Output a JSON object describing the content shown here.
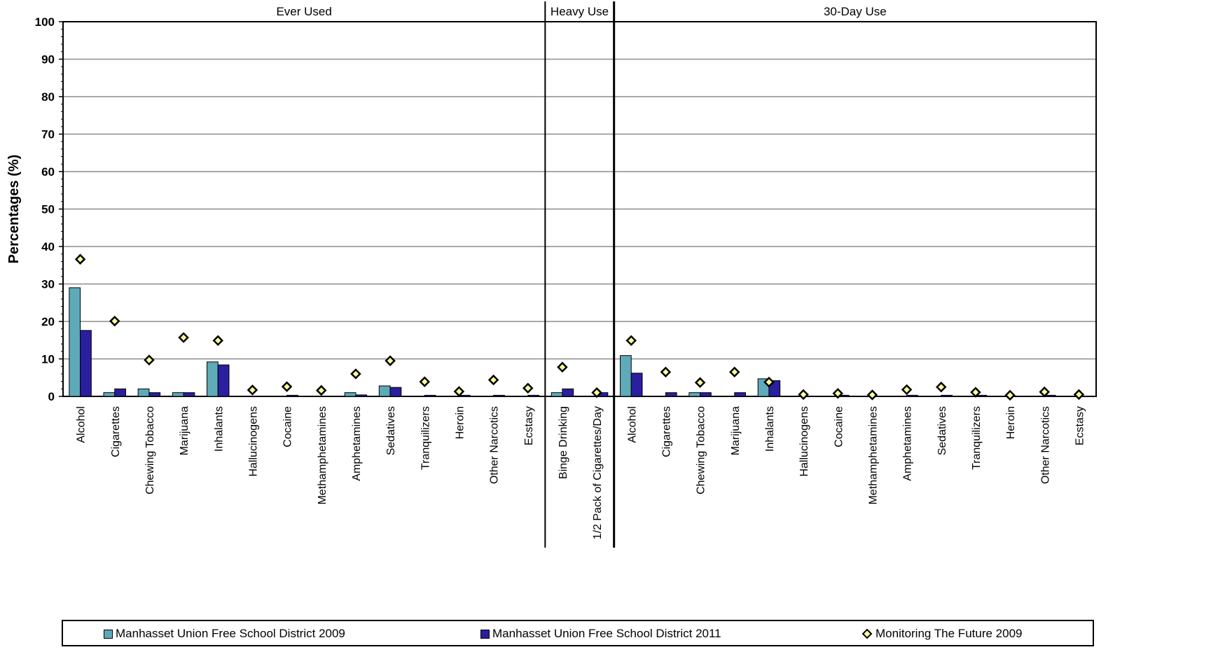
{
  "chart_data": {
    "type": "bar",
    "ylabel": "Percentages (%)",
    "ylim": [
      0,
      100
    ],
    "yticks": [
      "0",
      "10",
      "20",
      "30",
      "40",
      "50",
      "60",
      "70",
      "80",
      "90",
      "100"
    ],
    "grid": true,
    "legend_position": "bottom",
    "groups": [
      {
        "title": "Ever Used",
        "categories": [
          "Alcohol",
          "Cigarettes",
          "Chewing Tobacco",
          "Marijuana",
          "Inhalants",
          "Hallucinogens",
          "Cocaine",
          "Methamphetamines",
          "Amphetamines",
          "Sedatives",
          "Tranquilizers",
          "Heroin",
          "Other Narcotics",
          "Ecstasy"
        ],
        "series": [
          {
            "name": "Manhasset Union Free School District 2009",
            "values": [
              29.0,
              1.0,
              2.0,
              1.0,
              9.2,
              0,
              0,
              0,
              1.0,
              2.8,
              0,
              0,
              0,
              0
            ]
          },
          {
            "name": "Manhasset Union Free School District 2011",
            "values": [
              17.6,
              2.0,
              1.0,
              1.0,
              8.4,
              0,
              0.3,
              0,
              0.4,
              2.4,
              0.3,
              0.3,
              0.3,
              0.3
            ]
          },
          {
            "name": "Monitoring The Future 2009",
            "values": [
              36.6,
              20.1,
              9.7,
              15.7,
              14.9,
              1.7,
              2.6,
              1.6,
              6.0,
              9.5,
              3.9,
              1.3,
              4.4,
              2.2
            ]
          }
        ]
      },
      {
        "title": "Heavy Use",
        "categories": [
          "Binge Drinking",
          "1/2 Pack of Cigarettes/Day"
        ],
        "series": [
          {
            "name": "Manhasset Union Free School District 2009",
            "values": [
              1.0,
              0
            ]
          },
          {
            "name": "Manhasset Union Free School District 2011",
            "values": [
              2.0,
              1.0
            ]
          },
          {
            "name": "Monitoring The Future 2009",
            "values": [
              7.8,
              1.0
            ]
          }
        ]
      },
      {
        "title": "30-Day Use",
        "categories": [
          "Alcohol",
          "Cigarettes",
          "Chewing Tobacco",
          "Marijuana",
          "Inhalants",
          "Hallucinogens",
          "Cocaine",
          "Methamphetamines",
          "Amphetamines",
          "Sedatives",
          "Tranquilizers",
          "Heroin",
          "Other Narcotics",
          "Ecstasy"
        ],
        "series": [
          {
            "name": "Manhasset Union Free School District 2009",
            "values": [
              10.9,
              0,
              1.0,
              0,
              4.7,
              0,
              0,
              0,
              0,
              0,
              0,
              0,
              0,
              0
            ]
          },
          {
            "name": "Manhasset Union Free School District 2011",
            "values": [
              6.2,
              1.0,
              1.0,
              1.0,
              4.2,
              0,
              0.3,
              0,
              0.3,
              0.3,
              0.3,
              0,
              0.3,
              0
            ]
          },
          {
            "name": "Monitoring The Future 2009",
            "values": [
              14.9,
              6.5,
              3.7,
              6.5,
              3.8,
              0.5,
              0.8,
              0.4,
              1.8,
              2.5,
              1.1,
              0.3,
              1.2,
              0.5
            ]
          }
        ]
      }
    ],
    "colors": {
      "series_2009": "#5eaab8",
      "series_2011": "#2a1f9e",
      "series_mtf_fill": "#ffff99",
      "series_mtf_edge": "#000000"
    }
  },
  "legend": {
    "items": [
      {
        "label": "Manhasset Union Free School District 2009"
      },
      {
        "label": "Manhasset Union Free School District 2011"
      },
      {
        "label": "Monitoring The Future 2009"
      }
    ]
  }
}
